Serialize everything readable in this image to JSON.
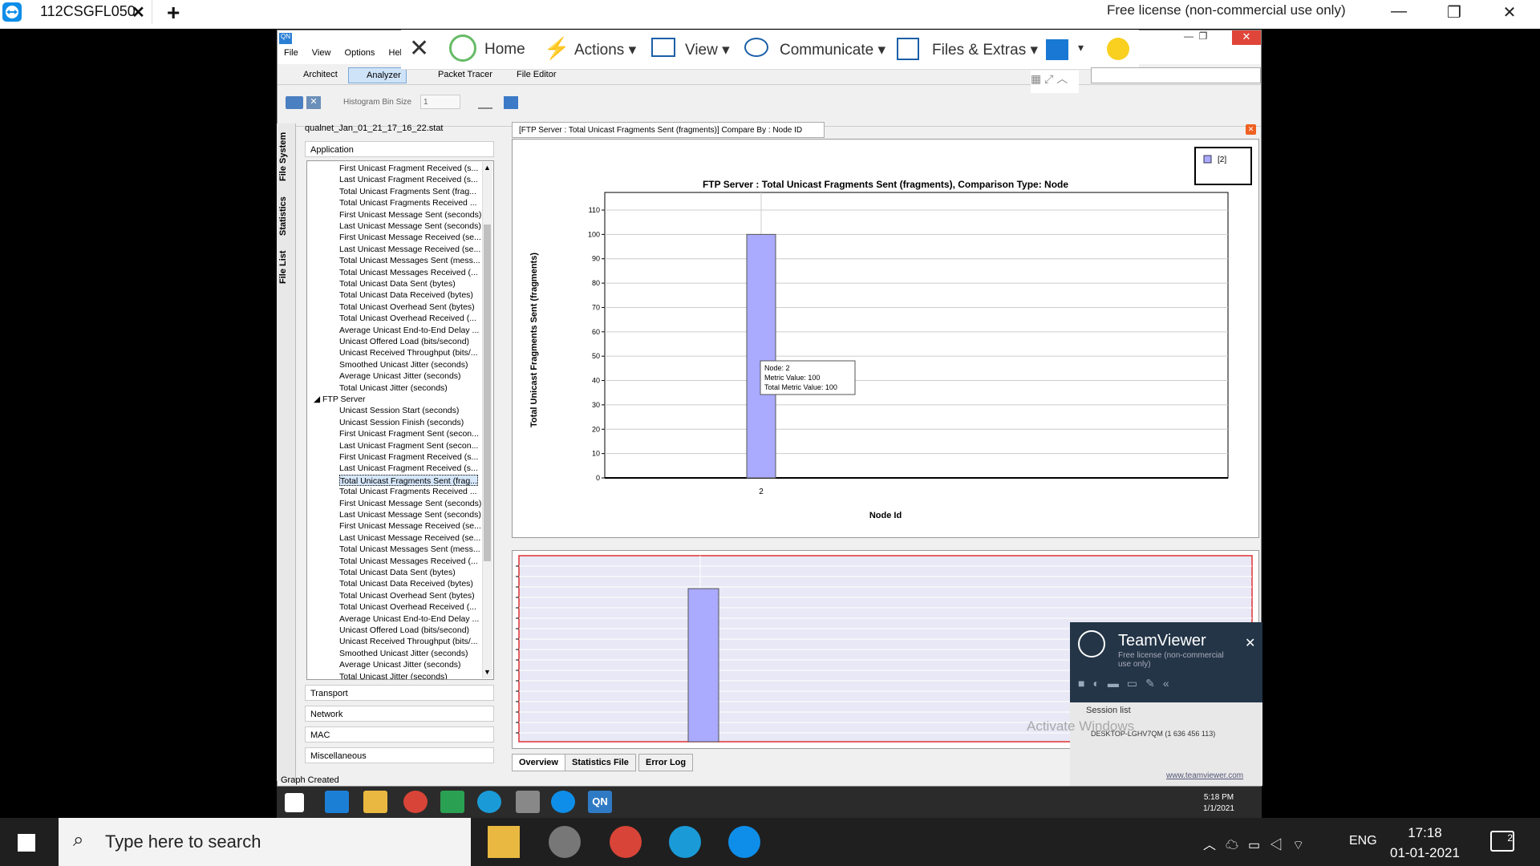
{
  "tvtabs": {
    "tab_title": "112CSGFL050",
    "license": "Free license (non-commercial use only)"
  },
  "tvtoolbar": {
    "home": "Home",
    "actions": "Actions",
    "view": "View",
    "communicate": "Communicate",
    "files": "Files & Extras"
  },
  "qualnet": {
    "menu": [
      "File",
      "View",
      "Options",
      "Help"
    ],
    "modes": [
      "Architect",
      "Analyzer",
      "Packet Tracer",
      "File Editor"
    ],
    "histogram_label": "Histogram Bin Size",
    "histogram_value": "1",
    "side_tabs": [
      "File System",
      "Statistics",
      "File List"
    ],
    "stat_file": "qualnet_Jan_01_21_17_16_22.stat",
    "application": "Application",
    "tree_items": [
      "First Unicast Fragment Received (s...",
      "Last Unicast Fragment Received (s...",
      "Total Unicast Fragments Sent (frag...",
      "Total Unicast Fragments Received ...",
      "First Unicast Message Sent (seconds)",
      "Last Unicast Message Sent (seconds)",
      "First Unicast Message Received (se...",
      "Last Unicast Message Received (se...",
      "Total Unicast Messages Sent (mess...",
      "Total Unicast Messages Received (...",
      "Total Unicast Data Sent (bytes)",
      "Total Unicast Data Received (bytes)",
      "Total Unicast Overhead Sent (bytes)",
      "Total Unicast Overhead Received (...",
      "Average Unicast End-to-End Delay ...",
      "Unicast Offered Load (bits/second)",
      "Unicast Received Throughput (bits/...",
      "Smoothed Unicast Jitter (seconds)",
      "Average Unicast Jitter (seconds)",
      "Total Unicast Jitter (seconds)"
    ],
    "ftp_server": "FTP Server",
    "ftp_items": [
      "Unicast Session Start (seconds)",
      "Unicast Session Finish (seconds)",
      "First Unicast Fragment Sent (secon...",
      "Last Unicast Fragment Sent (secon...",
      "First Unicast Fragment Received (s...",
      "Last Unicast Fragment Received (s...",
      "Total Unicast Fragments Sent (frag...",
      "Total Unicast Fragments Received ...",
      "First Unicast Message Sent (seconds)",
      "Last Unicast Message Sent (seconds)",
      "First Unicast Message Received (se...",
      "Last Unicast Message Received (se...",
      "Total Unicast Messages Sent (mess...",
      "Total Unicast Messages Received (...",
      "Total Unicast Data Sent (bytes)",
      "Total Unicast Data Received (bytes)",
      "Total Unicast Overhead Sent (bytes)",
      "Total Unicast Overhead Received (...",
      "Average Unicast End-to-End Delay ...",
      "Unicast Offered Load (bits/second)",
      "Unicast Received Throughput (bits/...",
      "Smoothed Unicast Jitter (seconds)",
      "Average Unicast Jitter (seconds)",
      "Total Unicast Jitter (seconds)"
    ],
    "categories": [
      "Transport",
      "Network",
      "MAC",
      "Miscellaneous"
    ],
    "status": "Graph Created",
    "chart_tab": "[FTP Server :  Total Unicast Fragments Sent (fragments)] Compare By : Node ID",
    "bottom_tabs": [
      "Overview",
      "Statistics File",
      "Error Log"
    ],
    "tooltip": [
      "Node: 2",
      "Metric Value: 100",
      "Total Metric Value: 100"
    ],
    "remote_time": "5:18 PM",
    "remote_date": "1/1/2021"
  },
  "chart_data": {
    "type": "bar",
    "title": "FTP Server :  Total Unicast Fragments Sent (fragments), Comparison Type: Node",
    "xlabel": "Node Id",
    "ylabel": "Total Unicast Fragments Sent (fragments)",
    "categories": [
      "2"
    ],
    "series": [
      {
        "name": "[2]",
        "values": [
          100
        ]
      }
    ],
    "ylim": [
      0,
      110
    ],
    "yticks": [
      "0",
      "10",
      "20",
      "30",
      "40",
      "50",
      "60",
      "70",
      "80",
      "90",
      "100",
      "110"
    ],
    "bar_color": "#aaaaff",
    "grid": true,
    "legend": "top-right"
  },
  "tvpopup": {
    "brand": "TeamViewer",
    "license": "Free license (non-commercial use only)",
    "session_list": "Session list",
    "session": "DESKTOP-LGHV7QM (1 636 456 113)",
    "url": "www.teamviewer.com"
  },
  "watermark": "Activate Windows",
  "taskbar": {
    "search": "Type here to search",
    "lang": "ENG",
    "time": "17:18",
    "date": "01-01-2021",
    "notif": "2"
  }
}
